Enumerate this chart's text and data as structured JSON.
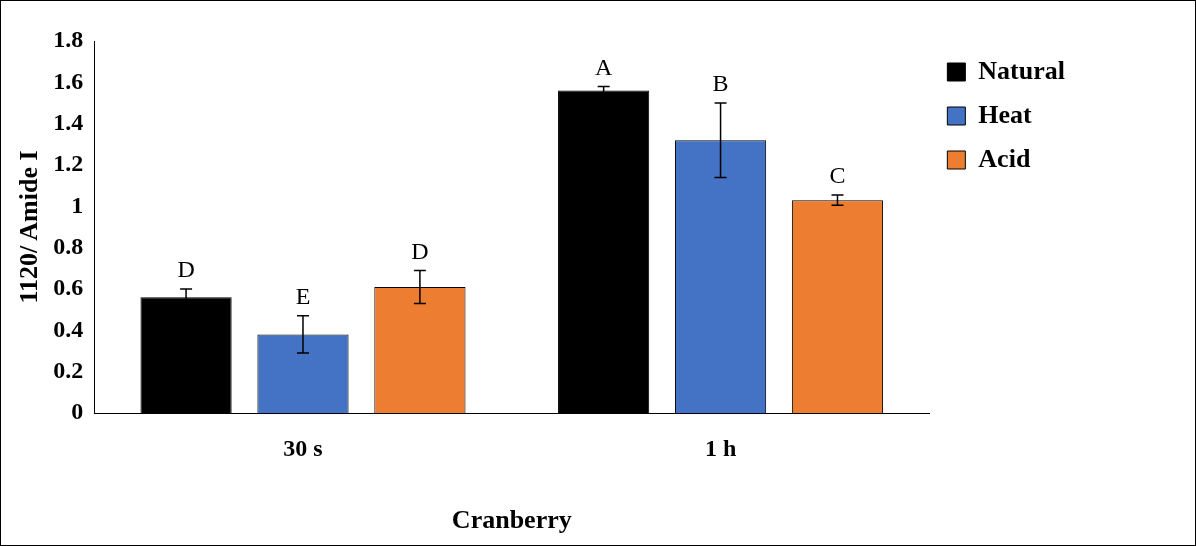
{
  "chart_data": {
    "type": "bar",
    "xlabel": "Cranberry",
    "ylabel": "1120/ Amide I",
    "categories": [
      "30 s",
      "1 h"
    ],
    "series": [
      {
        "name": "Natural",
        "color": "#000000",
        "values": [
          0.56,
          1.56
        ],
        "errors": [
          0.04,
          0.02
        ],
        "value_labels": [
          "D",
          "A"
        ]
      },
      {
        "name": "Heat",
        "color": "#4472c4",
        "values": [
          0.38,
          1.32
        ],
        "errors": [
          0.09,
          0.18
        ],
        "value_labels": [
          "E",
          "B"
        ]
      },
      {
        "name": "Acid",
        "color": "#ed7d31",
        "values": [
          0.61,
          1.03
        ],
        "errors": [
          0.08,
          0.025
        ],
        "value_labels": [
          "D",
          "C"
        ]
      }
    ],
    "ylim": [
      0,
      1.8
    ],
    "yticks": [
      0,
      0.2,
      0.4,
      0.6,
      0.8,
      1,
      1.2,
      1.4,
      1.6,
      1.8
    ],
    "grid": false,
    "legend": "right"
  }
}
